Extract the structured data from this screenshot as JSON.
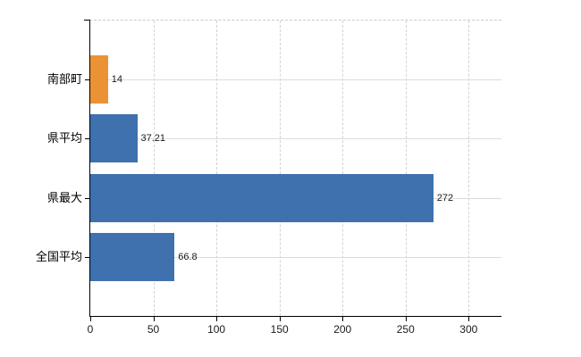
{
  "chart_data": {
    "type": "bar",
    "orientation": "horizontal",
    "title": "",
    "xlabel": "",
    "ylabel": "",
    "legend": false,
    "grid": true,
    "categories": [
      "南部町",
      "県平均",
      "県最大",
      "全国平均"
    ],
    "values": [
      14,
      37.21,
      272,
      66.8
    ],
    "value_labels": [
      "14",
      "37.21",
      "272",
      "66.8"
    ],
    "x_ticks": [
      0,
      50,
      100,
      150,
      200,
      250,
      300
    ],
    "xlim": [
      0,
      326
    ],
    "bar_colors": [
      "#eb9234",
      "#3e71ad",
      "#3e71ad",
      "#3e71ad"
    ],
    "colors": {
      "highlight_bar": "#eb9234",
      "default_bar": "#3e71ad",
      "gridline": "#d8d4d6",
      "axis": "#000000",
      "background": "#ffffff"
    }
  }
}
